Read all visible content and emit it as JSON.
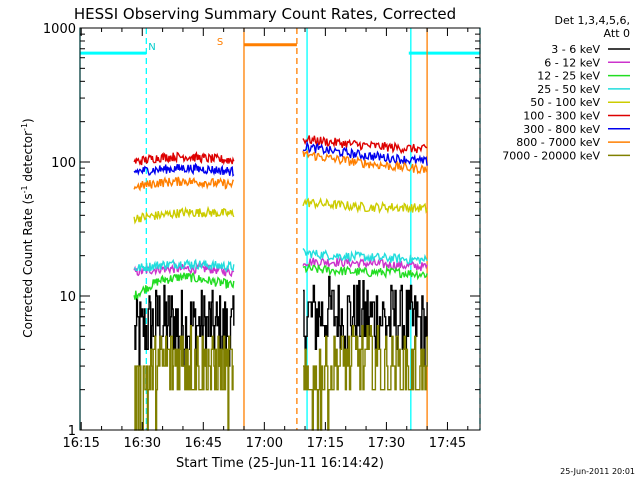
{
  "chart_data": {
    "type": "line",
    "title": "HESSI Observing Summary Count Rates, Corrected",
    "xlabel": "Start Time (25-Jun-11 16:14:42)",
    "ylabel_main": "Corrected Count Rate (s",
    "ylabel_sup1": "-1",
    "ylabel_mid": " detector",
    "ylabel_sup2": "-1",
    "ylabel_end": ")",
    "yscale": "log",
    "ylim": [
      1,
      1000
    ],
    "xlim": [
      "16:14:42",
      "17:53:00"
    ],
    "x_ticks": [
      "16:15",
      "16:30",
      "16:45",
      "17:00",
      "17:15",
      "17:30",
      "17:45"
    ],
    "y_ticks": [
      "1",
      "10",
      "100",
      "1000"
    ],
    "legend_header": [
      "Det 1,3,4,5,6,",
      "Att 0"
    ],
    "legend_position": "right",
    "timestamp": "25-Jun-2011 20:01",
    "flag_labels": {
      "night": "N",
      "saa": "S"
    },
    "series": [
      {
        "name": "3 - 6 keV",
        "color": "#000000",
        "seg1": [
          5.0,
          6.5,
          6.0,
          6.0,
          5.5
        ],
        "seg2": [
          7.0,
          7.5,
          7.0,
          6.5,
          6.0
        ]
      },
      {
        "name": "6 - 12 keV",
        "color": "#cc33cc",
        "seg1": [
          15.0,
          16.0,
          16.0,
          16.0,
          15.0
        ],
        "seg2": [
          18.0,
          18.0,
          17.5,
          17.0,
          16.5
        ]
      },
      {
        "name": "12 - 25 keV",
        "color": "#22dd22",
        "seg1": [
          10.0,
          13.0,
          14.0,
          13.0,
          12.0
        ],
        "seg2": [
          16.0,
          15.5,
          15.0,
          15.0,
          14.5
        ]
      },
      {
        "name": "25 - 50 keV",
        "color": "#22dddd",
        "seg1": [
          16.0,
          17.0,
          17.5,
          17.0,
          16.5
        ],
        "seg2": [
          21.0,
          20.0,
          19.5,
          19.0,
          18.5
        ]
      },
      {
        "name": "50 - 100 keV",
        "color": "#cccc00",
        "seg1": [
          38.0,
          40.0,
          42.0,
          42.0,
          41.0
        ],
        "seg2": [
          50.0,
          48.0,
          46.0,
          46.0,
          45.0
        ]
      },
      {
        "name": "100 - 300 keV",
        "color": "#dd0000",
        "seg1": [
          100.0,
          108.0,
          110.0,
          106.0,
          103.0
        ],
        "seg2": [
          148.0,
          140.0,
          133.0,
          128.0,
          124.0
        ]
      },
      {
        "name": "300 - 800 keV",
        "color": "#0000ee",
        "seg1": [
          85.0,
          88.0,
          90.0,
          88.0,
          85.0
        ],
        "seg2": [
          130.0,
          120.0,
          112.0,
          106.0,
          100.0
        ]
      },
      {
        "name": "800 - 7000 keV",
        "color": "#ff7f00",
        "seg1": [
          65.0,
          70.0,
          72.0,
          70.0,
          68.0
        ],
        "seg2": [
          115.0,
          105.0,
          98.0,
          92.0,
          88.0
        ]
      },
      {
        "name": "7000 - 20000 keV",
        "color": "#808000",
        "seg1": [
          1.5,
          3.0,
          3.5,
          3.0,
          2.5
        ],
        "seg2": [
          2.0,
          3.0,
          3.5,
          3.0,
          2.5
        ]
      }
    ],
    "data_segments": [
      {
        "start": "16:28:00",
        "end": "16:52:30"
      },
      {
        "start": "17:09:30",
        "end": "17:40:00"
      }
    ],
    "flags": {
      "night_color": "#00ffff",
      "saa_color": "#ff7f00",
      "night_intervals": [
        [
          "16:14:42",
          "16:31:00"
        ],
        [
          "17:35:30",
          "17:53:00"
        ]
      ],
      "saa_intervals": [
        [
          "16:55:00",
          "17:08:00"
        ]
      ],
      "cyan_boundaries": [
        "16:14:42",
        "17:10:30",
        "17:36:00"
      ],
      "dashed_cyan": [
        "16:31:00",
        "17:53:00"
      ],
      "orange_solid": [
        "16:55:00",
        "17:40:00"
      ],
      "orange_dashed": [
        "17:08:00"
      ]
    }
  }
}
